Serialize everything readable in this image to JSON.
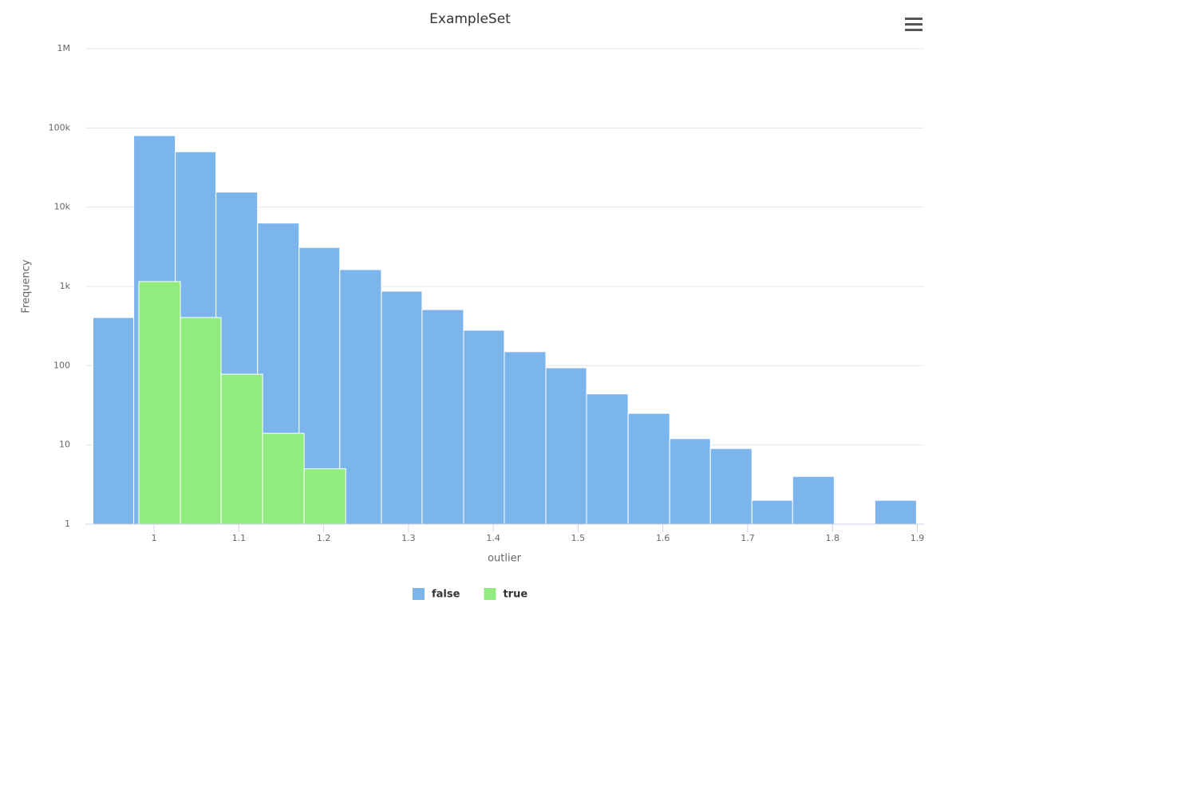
{
  "chart_data": {
    "type": "histogram",
    "title": "ExampleSet",
    "x_label": "outlier",
    "y_label": "Frequency",
    "log_y": true,
    "grid": true,
    "legend": "bottom",
    "xlim": [
      0.919,
      1.908
    ],
    "xticks": [
      1,
      1.1,
      1.2,
      1.3,
      1.4,
      1.5,
      1.6,
      1.7,
      1.8,
      1.9
    ],
    "ylim": [
      1,
      1000000
    ],
    "yticks": [
      1,
      10,
      100,
      {
        "value": 1000,
        "label": "1k"
      },
      {
        "value": 10000,
        "label": "10k"
      },
      {
        "value": 100000,
        "label": "100k"
      },
      {
        "value": 1000000,
        "label": "1M"
      }
    ],
    "series": [
      {
        "name": "false",
        "color": "#7cb5ec",
        "bins": [
          0.928,
          0.976,
          1.025,
          1.073,
          1.122,
          1.171,
          1.219,
          1.268,
          1.316,
          1.365,
          1.413,
          1.462,
          1.51,
          1.559,
          1.608,
          1.656,
          1.705,
          1.753,
          1.802,
          1.85,
          1.899
        ],
        "values": [
          405,
          80000,
          50000,
          15500,
          6300,
          3100,
          1630,
          870,
          510,
          280,
          150,
          94,
          44,
          25,
          12,
          9,
          2,
          4,
          null,
          2
        ]
      },
      {
        "name": "true",
        "color": "#90ed7d",
        "bins": [
          0.982,
          1.031,
          1.079,
          1.128,
          1.177,
          1.226
        ],
        "values": [
          1150,
          405,
          78,
          14,
          5
        ]
      }
    ]
  }
}
